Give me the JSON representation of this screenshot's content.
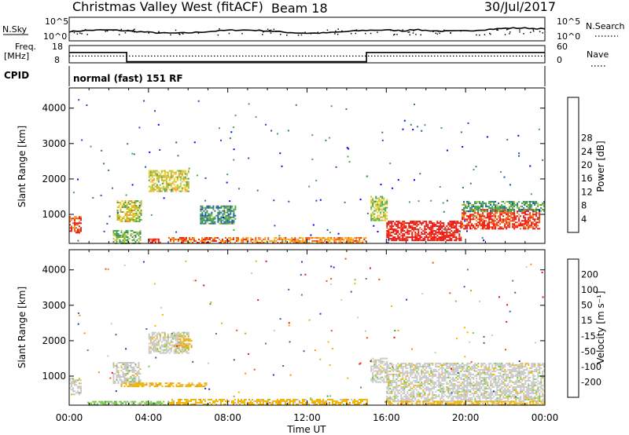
{
  "header": {
    "station": "Christmas Valley West (fitACF)",
    "beam": "Beam 18",
    "date": "30/Jul/2017"
  },
  "top_panels": {
    "nsky_label": "N.Sky",
    "nsky_ticks": [
      "10^5",
      "10^0"
    ],
    "nsearch_label": "N.Search",
    "nsearch_ticks": [
      "10^5",
      "10^0"
    ],
    "freq_label": "Freq.",
    "freq_unit": "[MHz]",
    "freq_ticks": [
      "18",
      "8"
    ],
    "nave_label": "Nave",
    "nave_ticks": [
      "60",
      "0"
    ],
    "cpid_label": "CPID",
    "cpid_text": "normal (fast) 151 RF",
    "freq_series": [
      [
        0,
        14.8
      ],
      [
        2.9,
        14.8
      ],
      [
        2.9,
        8.2
      ],
      [
        15.0,
        8.2
      ],
      [
        15.0,
        14.8
      ],
      [
        24,
        14.8
      ]
    ],
    "nave_level": 22
  },
  "chart_data": [
    {
      "type": "heatmap",
      "name": "power",
      "ylabel": "Slant Range [km]",
      "ylim": [
        180,
        4570
      ],
      "yticks": [
        "1000",
        "2000",
        "3000",
        "4000"
      ],
      "xlim": [
        0,
        24
      ],
      "xticks": [
        "00:00",
        "04:00",
        "08:00",
        "12:00",
        "16:00",
        "20:00",
        "00:00"
      ],
      "colorbar": {
        "label": "Power [dB]",
        "ticks": [
          "4",
          "8",
          "12",
          "16",
          "20",
          "24",
          "28"
        ],
        "colors": [
          "#0000ff",
          "#1f4fa8",
          "#2e7f6e",
          "#46a846",
          "#a6c63c",
          "#f0c81e",
          "#f5961e",
          "#f05a14",
          "#e11e14",
          "#ff0000"
        ]
      },
      "regions": [
        {
          "t": [
            0.0,
            0.6
          ],
          "r": [
            480,
            950
          ],
          "level": 0.8
        },
        {
          "t": [
            2.2,
            3.6
          ],
          "r": [
            180,
            560
          ],
          "level": 0.35
        },
        {
          "t": [
            2.4,
            3.6
          ],
          "r": [
            780,
            1400
          ],
          "level": 0.5
        },
        {
          "t": [
            4.0,
            6.0
          ],
          "r": [
            1650,
            2250
          ],
          "level": 0.5
        },
        {
          "t": [
            4.0,
            4.6
          ],
          "r": [
            200,
            320
          ],
          "level": 0.9
        },
        {
          "t": [
            5.0,
            8.5
          ],
          "r": [
            200,
            360
          ],
          "level": 0.75
        },
        {
          "t": [
            6.6,
            8.4
          ],
          "r": [
            760,
            1250
          ],
          "level": 0.25
        },
        {
          "t": [
            8.5,
            15.0
          ],
          "r": [
            200,
            360
          ],
          "level": 0.7
        },
        {
          "t": [
            15.2,
            16.0
          ],
          "r": [
            830,
            1520
          ],
          "level": 0.45
        },
        {
          "t": [
            16.0,
            19.8
          ],
          "r": [
            280,
            820
          ],
          "level": 0.95
        },
        {
          "t": [
            19.8,
            23.7
          ],
          "r": [
            600,
            1150
          ],
          "level": 0.85
        },
        {
          "t": [
            19.8,
            24.0
          ],
          "r": [
            1100,
            1380
          ],
          "level": 0.3
        }
      ]
    },
    {
      "type": "heatmap",
      "name": "velocity",
      "ylabel": "Slant Range [km]",
      "ylim": [
        180,
        4570
      ],
      "yticks": [
        "1000",
        "2000",
        "3000",
        "4000"
      ],
      "xlim": [
        0,
        24
      ],
      "xticks": [
        "00:00",
        "04:00",
        "08:00",
        "12:00",
        "16:00",
        "20:00",
        "00:00"
      ],
      "xlabel": "Time UT",
      "colorbar": {
        "label": "Velocity [m s⁻¹]",
        "ticks": [
          "200",
          "100",
          "50",
          "15",
          "-15",
          "-50",
          "-100",
          "-200"
        ],
        "colors": [
          "#1e32c8",
          "#2a64a0",
          "#3c9646",
          "#78c83c",
          "#c8c8c8",
          "#f0b400",
          "#f58c1e",
          "#f05014",
          "#e61414"
        ]
      },
      "regions": [
        {
          "t": [
            0.0,
            0.6
          ],
          "r": [
            480,
            950
          ],
          "level": 4
        },
        {
          "t": [
            2.2,
            3.6
          ],
          "r": [
            780,
            1400
          ],
          "level": 4
        },
        {
          "t": [
            4.0,
            6.0
          ],
          "r": [
            1650,
            2250
          ],
          "level": 4
        },
        {
          "t": [
            5.5,
            6.2
          ],
          "r": [
            1800,
            2150
          ],
          "level": 5
        },
        {
          "t": [
            2.6,
            7.0
          ],
          "r": [
            700,
            820
          ],
          "level": 5
        },
        {
          "t": [
            5.0,
            15.0
          ],
          "r": [
            200,
            360
          ],
          "level": 5
        },
        {
          "t": [
            1.0,
            5.0
          ],
          "r": [
            200,
            300
          ],
          "level": 3
        },
        {
          "t": [
            15.2,
            16.0
          ],
          "r": [
            830,
            1520
          ],
          "level": 4
        },
        {
          "t": [
            16.0,
            24.0
          ],
          "r": [
            280,
            1380
          ],
          "level": 4
        },
        {
          "t": [
            16.0,
            24.0
          ],
          "r": [
            200,
            300
          ],
          "level": 5
        }
      ]
    }
  ]
}
